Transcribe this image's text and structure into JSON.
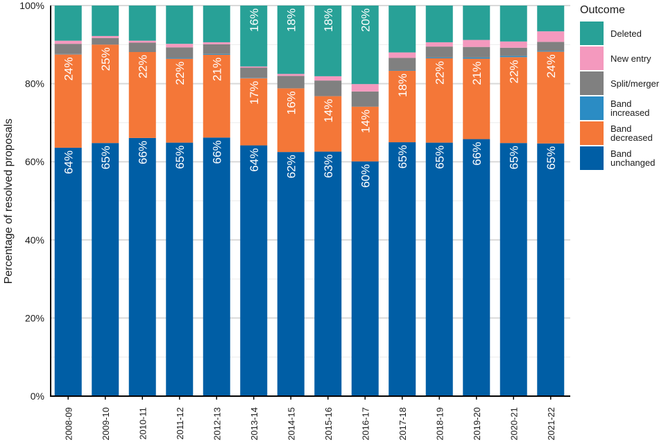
{
  "chart_data": {
    "type": "bar",
    "stacked": true,
    "orientation": "vertical",
    "title": "",
    "xlabel": "",
    "ylabel": "Percentage of resolved proposals",
    "ylim": [
      0,
      100
    ],
    "yticks": [
      "0%",
      "20%",
      "40%",
      "60%",
      "80%",
      "100%"
    ],
    "ytick_values": [
      0,
      20,
      40,
      60,
      80,
      100
    ],
    "minor_grid_values": [
      10,
      30,
      50,
      70,
      90
    ],
    "grid": true,
    "legend_title": "Outcome",
    "legend_position": "right",
    "categories": [
      "2008-09",
      "2009-10",
      "2010-11",
      "2011-12",
      "2012-13",
      "2013-14",
      "2014-15",
      "2015-16",
      "2016-17",
      "2017-18",
      "2018-19",
      "2019-20",
      "2020-21",
      "2021-22"
    ],
    "series": [
      {
        "name": "Band unchanged",
        "color": "#005ea5",
        "values": [
          63.6,
          64.8,
          66.1,
          64.9,
          66.2,
          64.2,
          62.5,
          62.6,
          60.1,
          65.0,
          64.9,
          65.8,
          64.8,
          64.7
        ],
        "labels": [
          "64%",
          "65%",
          "66%",
          "65%",
          "66%",
          "64%",
          "62%",
          "63%",
          "60%",
          "65%",
          "65%",
          "66%",
          "65%",
          "65%"
        ]
      },
      {
        "name": "Band decreased",
        "color": "#f47738",
        "values": [
          23.9,
          25.2,
          22.0,
          21.5,
          21.2,
          17.2,
          16.3,
          14.2,
          14.0,
          18.3,
          21.6,
          20.6,
          22.0,
          23.5
        ],
        "labels": [
          "24%",
          "25%",
          "22%",
          "22%",
          "21%",
          "17%",
          "16%",
          "14%",
          "14%",
          "18%",
          "22%",
          "21%",
          "22%",
          "24%"
        ]
      },
      {
        "name": "Band increased",
        "color": "#2b8cc4",
        "values": [
          0.1,
          0.0,
          0.0,
          0.2,
          0.2,
          0.1,
          0.0,
          0.0,
          0.0,
          0.1,
          0.2,
          0.3,
          0.3,
          0.2
        ],
        "labels": []
      },
      {
        "name": "Split/merger",
        "color": "#808080",
        "values": [
          2.6,
          1.7,
          2.4,
          2.7,
          2.5,
          2.6,
          3.2,
          4.0,
          3.9,
          3.2,
          2.8,
          2.7,
          2.1,
          2.3
        ],
        "labels": []
      },
      {
        "name": "New entry",
        "color": "#f499be",
        "values": [
          0.8,
          0.5,
          0.5,
          0.9,
          0.5,
          0.3,
          0.5,
          1.1,
          1.9,
          1.4,
          1.1,
          1.8,
          1.6,
          2.7
        ],
        "labels": []
      },
      {
        "name": "Deleted",
        "color": "#28a197",
        "values": [
          9.0,
          7.8,
          9.0,
          9.8,
          9.4,
          15.6,
          17.5,
          18.1,
          20.1,
          12.0,
          9.4,
          8.8,
          9.2,
          6.6
        ],
        "labels": [
          "",
          "",
          "",
          "",
          "",
          "16%",
          "18%",
          "18%",
          "20%",
          "",
          "",
          "",
          "",
          ""
        ]
      }
    ]
  },
  "legend": {
    "title": "Outcome",
    "items": [
      {
        "label": "Deleted",
        "color": "#28a197"
      },
      {
        "label": "New entry",
        "color": "#f499be"
      },
      {
        "label": "Split/merger",
        "color": "#808080"
      },
      {
        "label": "Band increased",
        "color": "#2b8cc4"
      },
      {
        "label": "Band decreased",
        "color": "#f47738"
      },
      {
        "label": "Band unchanged",
        "color": "#005ea5"
      }
    ]
  }
}
